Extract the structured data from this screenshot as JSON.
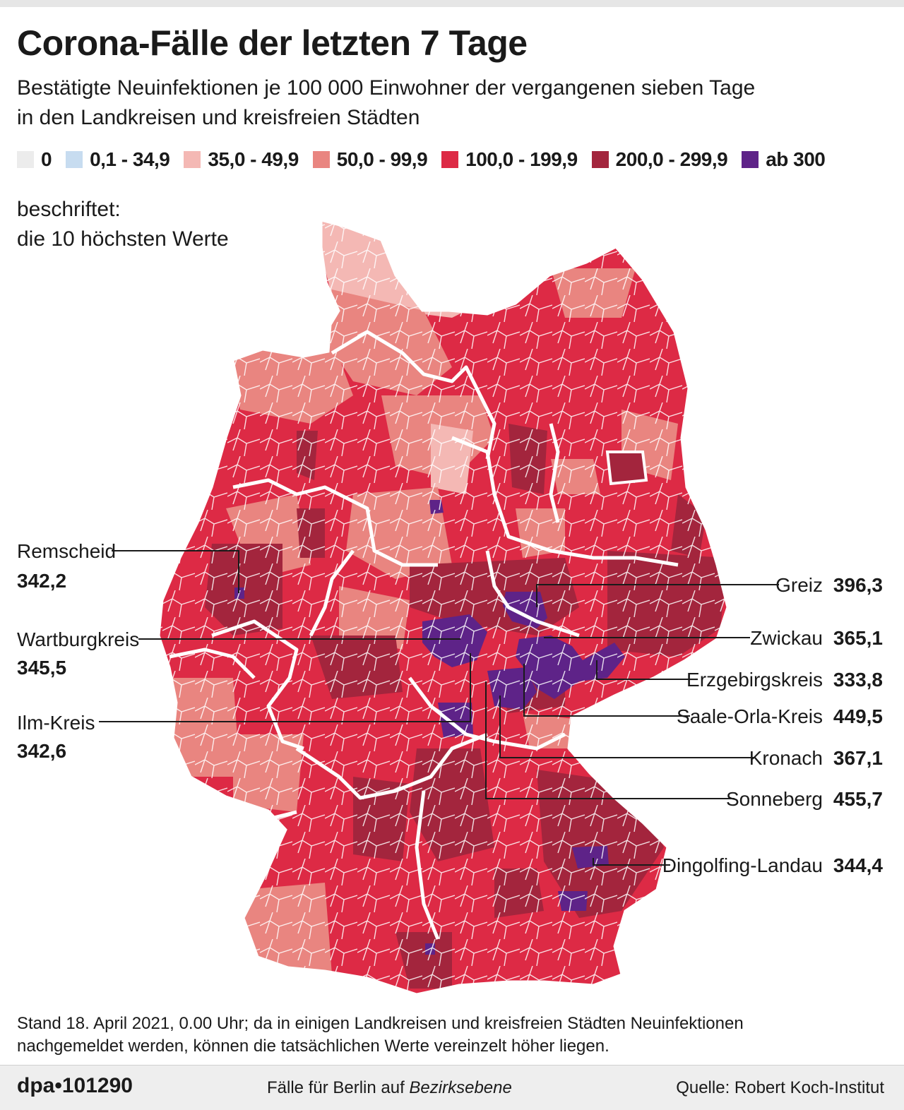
{
  "header": {
    "title": "Corona-Fälle der letzten 7 Tage",
    "subtitle_line1": "Bestätigte Neuinfektionen je 100 000 Einwohner der vergangenen sieben Tage",
    "subtitle_line2": "in den Landkreisen und kreisfreien Städten"
  },
  "legend": [
    {
      "label": "0",
      "color": "#ececec"
    },
    {
      "label": "0,1 - 34,9",
      "color": "#c7dcf0"
    },
    {
      "label": "35,0 - 49,9",
      "color": "#f4b8b4"
    },
    {
      "label": "50,0 - 99,9",
      "color": "#e98580"
    },
    {
      "label": "100,0 - 199,9",
      "color": "#dd2a45"
    },
    {
      "label": "200,0 - 299,9",
      "color": "#a3253d"
    },
    {
      "label": "ab 300",
      "color": "#5e2388"
    }
  ],
  "note": {
    "line1": "beschriftet:",
    "line2": "die 10 höchsten Werte"
  },
  "labeled_regions": [
    {
      "name": "Remscheid",
      "value": "342,2"
    },
    {
      "name": "Wartburgkreis",
      "value": "345,5"
    },
    {
      "name": "Ilm-Kreis",
      "value": "342,6"
    },
    {
      "name": "Greiz",
      "value": "396,3"
    },
    {
      "name": "Zwickau",
      "value": "365,1"
    },
    {
      "name": "Erzgebirgskreis",
      "value": "333,8"
    },
    {
      "name": "Saale-Orla-Kreis",
      "value": "449,5"
    },
    {
      "name": "Kronach",
      "value": "367,1"
    },
    {
      "name": "Sonneberg",
      "value": "455,7"
    },
    {
      "name": "Dingolfing-Landau",
      "value": "344,4"
    }
  ],
  "footnote": {
    "line1": "Stand 18. April 2021, 0.00 Uhr; da in einigen Landkreisen und kreisfreien Städten Neuinfektionen",
    "line2": "nachgemeldet werden, können die tatsächlichen Werte vereinzelt höher liegen."
  },
  "footer": {
    "credit": "dpa•101290",
    "center_text": "Fälle für Berlin auf ",
    "center_italic": "Bezirksebene",
    "source": "Quelle: Robert Koch-Institut"
  }
}
